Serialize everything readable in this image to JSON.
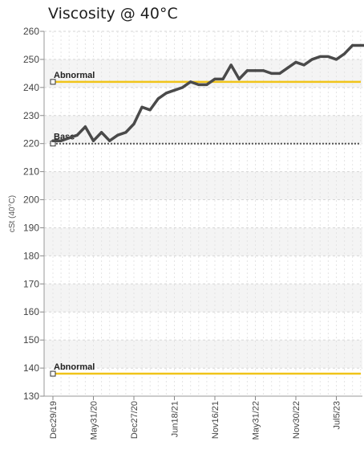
{
  "chart_data": {
    "type": "line",
    "title": "Viscosity @ 40°C",
    "ylabel": "cSt (40°C)",
    "xlabel": "",
    "ylim": [
      130,
      260
    ],
    "yticks": [
      130,
      140,
      150,
      160,
      170,
      180,
      190,
      200,
      210,
      220,
      230,
      240,
      250,
      260
    ],
    "grid": true,
    "x_tick_labels": [
      "Dec29/19",
      "May31/20",
      "Dec27/20",
      "Jun18/21",
      "Nov16/21",
      "May31/22",
      "Nov30/22",
      "Jul5/23"
    ],
    "x_tick_positions": [
      0,
      5,
      10,
      15,
      20,
      25,
      30,
      35
    ],
    "series": [
      {
        "values": [
          221,
          221,
          222,
          223,
          226,
          221,
          224,
          221,
          223,
          224,
          227,
          233,
          232,
          236,
          238,
          239,
          240,
          242,
          241,
          241,
          243,
          243,
          248,
          243,
          246,
          246,
          246,
          245,
          245,
          247,
          249,
          248,
          250,
          251,
          251,
          250,
          252,
          255,
          255,
          255
        ],
        "color": "#4a4a4a"
      }
    ],
    "reference_lines": [
      {
        "label": "Abnormal",
        "value": 242,
        "color": "#f0c419"
      },
      {
        "label": "Base",
        "value": 220,
        "color": "#555555"
      },
      {
        "label": "Abnormal",
        "value": 138,
        "color": "#f0c419"
      }
    ]
  }
}
